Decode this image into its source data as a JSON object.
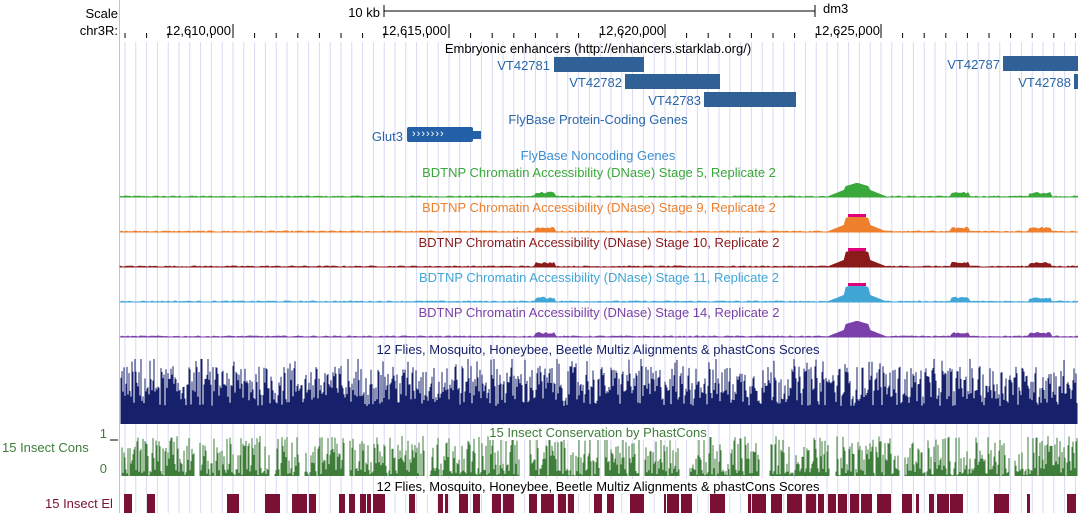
{
  "ruler": {
    "scale_label": "Scale",
    "chrom_label": "chr3R:",
    "scale_bar_label": "10 kb",
    "assembly": "dm3",
    "positions": [
      "12,610,000",
      "12,615,000",
      "12,620,000",
      "12,625,000"
    ]
  },
  "tracks": {
    "enhancers": {
      "title": "Embryonic enhancers (http://enhancers.starklab.org/)",
      "items": [
        {
          "name": "VT42781"
        },
        {
          "name": "VT42782"
        },
        {
          "name": "VT42783"
        },
        {
          "name": "VT42787"
        },
        {
          "name": "VT42788"
        }
      ]
    },
    "protein_coding": {
      "title": "FlyBase Protein-Coding Genes",
      "gene": "Glut3",
      "strand_glyph": "›››››››"
    },
    "noncoding": {
      "title": "FlyBase Noncoding Genes"
    },
    "dnase": [
      {
        "title": "BDTNP Chromatin Accessibility (DNase) Stage 5, Replicate 2",
        "color": "#3aa83a"
      },
      {
        "title": "BDTNP Chromatin Accessibility (DNase) Stage 9, Replicate 2",
        "color": "#ee7f2d"
      },
      {
        "title": "BDTNP Chromatin Accessibility (DNase) Stage 10, Replicate 2",
        "color": "#8b1a1a"
      },
      {
        "title": "BDTNP Chromatin Accessibility (DNase) Stage 11, Replicate 2",
        "color": "#3fa6d6"
      },
      {
        "title": "BDTNP Chromatin Accessibility (DNase) Stage 14, Replicate 2",
        "color": "#7a3fa8"
      }
    ],
    "multiz": {
      "title": "12 Flies, Mosquito, Honeybee, Beetle Multiz Alignments & phastCons Scores",
      "color": "#17206b"
    },
    "cons": {
      "title": "15 Insect Conservation by PhastCons",
      "side_label": "15 Insect Cons",
      "y_max": "1",
      "y_min": "0",
      "color": "#3e7d3a"
    },
    "elements": {
      "title": "12 Flies, Mosquito, Honeybee, Beetle Multiz Alignments & phastCons Scores",
      "side_label": "15 Insect El",
      "color": "#7a1034"
    }
  },
  "colors": {
    "blue_link": "#2a66a7",
    "feature_blue": "#2f6096",
    "gridline": "#d9d9f3",
    "peak_top": "#e0007a",
    "side_border": "#f0b0b0"
  }
}
